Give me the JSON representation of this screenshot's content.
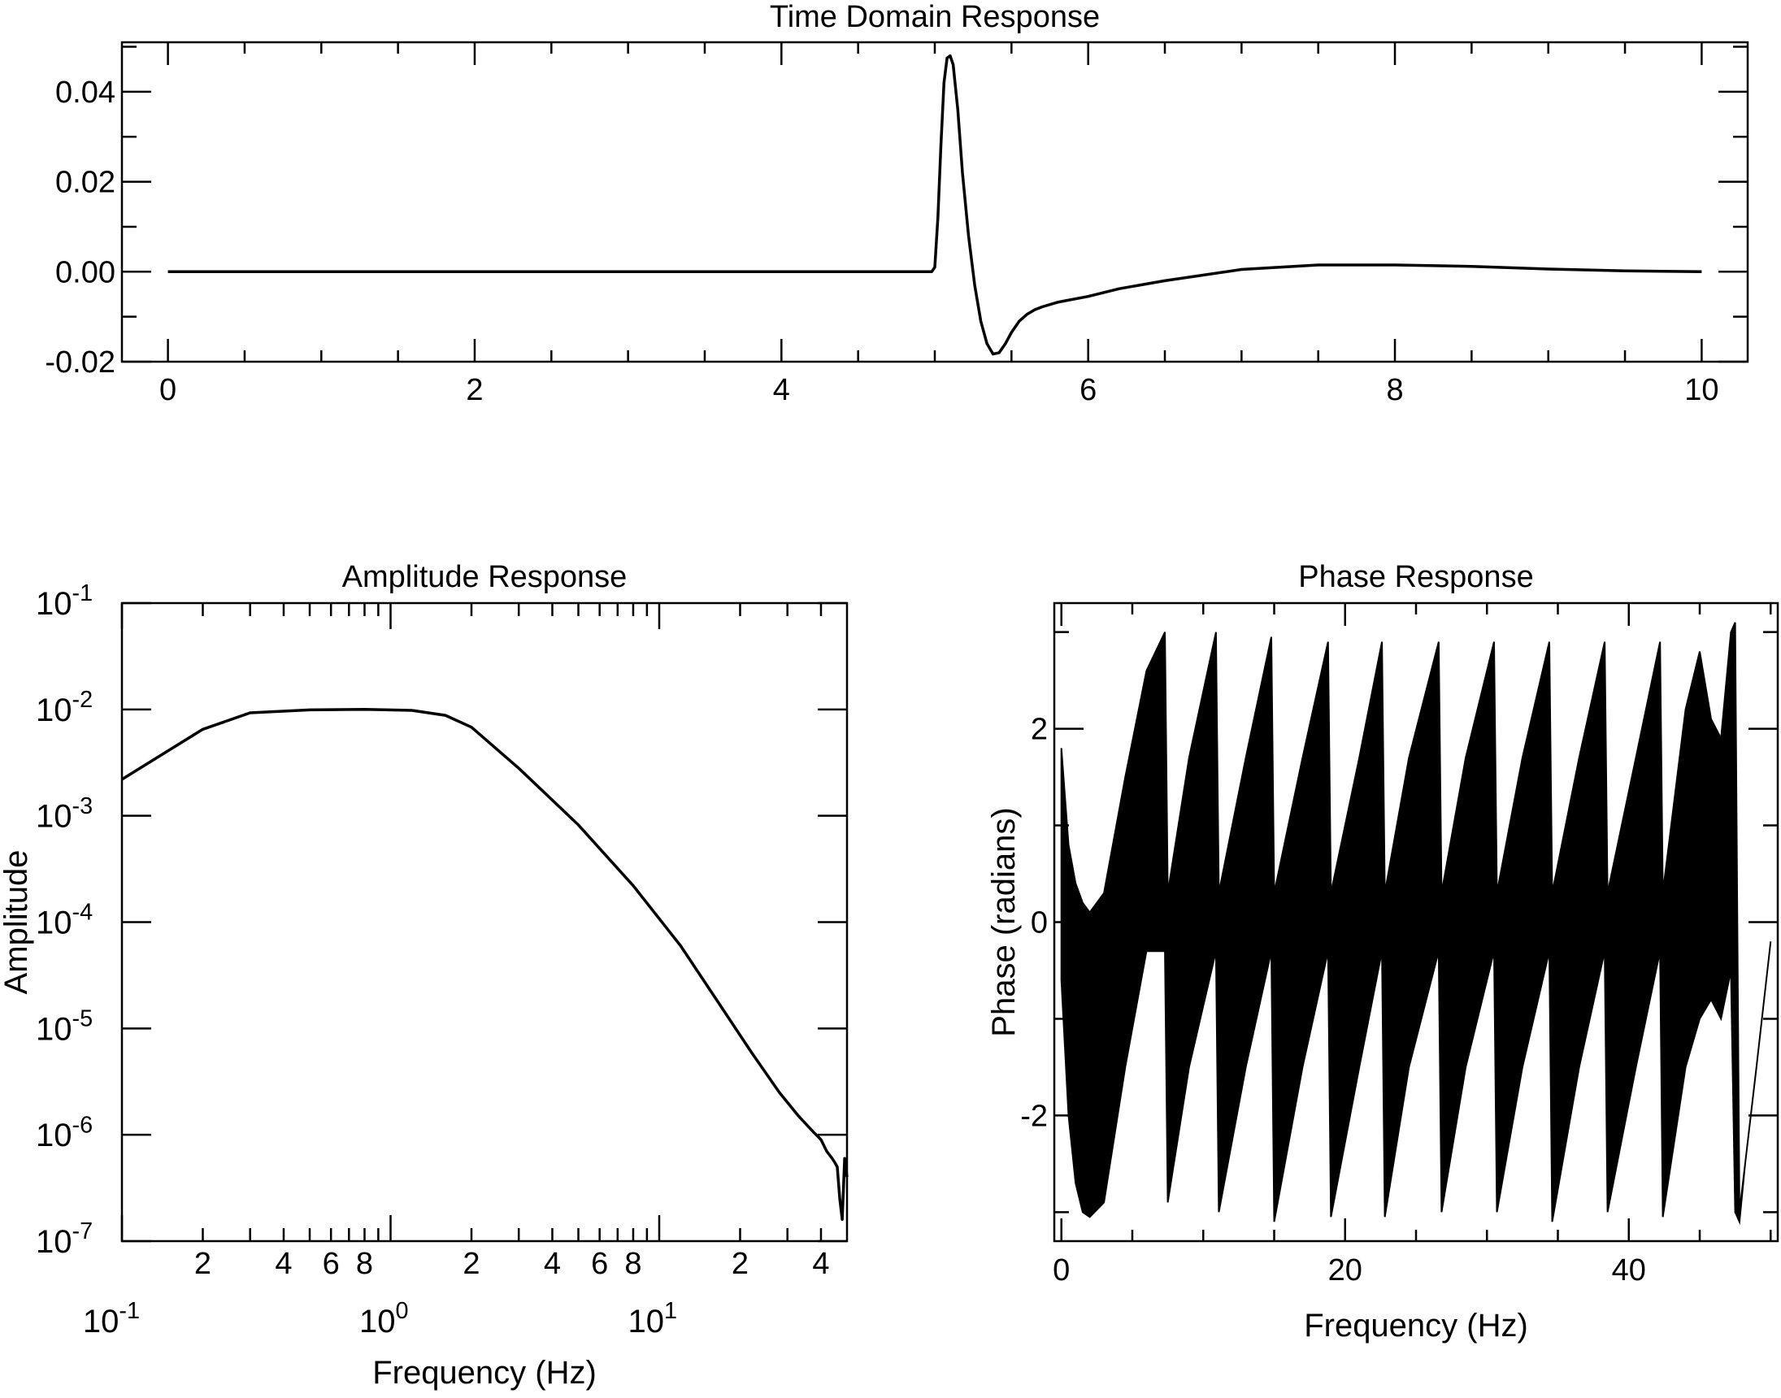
{
  "chart_data": [
    {
      "type": "line",
      "title": "Time Domain Response",
      "xlabel": "",
      "ylabel": "",
      "xlim": [
        -0.3,
        10.3
      ],
      "ylim": [
        -0.02,
        0.051
      ],
      "xticks": [
        0,
        2,
        4,
        6,
        8,
        10
      ],
      "xtick_labels": [
        "0",
        "2",
        "4",
        "6",
        "8",
        "10"
      ],
      "yticks": [
        -0.02,
        0.0,
        0.02,
        0.04
      ],
      "ytick_labels": [
        "-0.02",
        "0.00",
        "0.02",
        "0.04"
      ],
      "grid": false,
      "series": [
        {
          "color": "#000000",
          "x": [
            0,
            4.98,
            5.0,
            5.02,
            5.04,
            5.06,
            5.08,
            5.1,
            5.12,
            5.15,
            5.18,
            5.22,
            5.26,
            5.3,
            5.34,
            5.38,
            5.42,
            5.46,
            5.5,
            5.55,
            5.6,
            5.65,
            5.7,
            5.8,
            6.0,
            6.2,
            6.5,
            7.0,
            7.5,
            8.0,
            8.5,
            9.0,
            9.5,
            10.0
          ],
          "y": [
            0.0,
            0.0,
            0.001,
            0.012,
            0.028,
            0.042,
            0.0475,
            0.048,
            0.046,
            0.036,
            0.022,
            0.008,
            -0.003,
            -0.011,
            -0.016,
            -0.0183,
            -0.018,
            -0.016,
            -0.0135,
            -0.011,
            -0.0095,
            -0.0085,
            -0.0078,
            -0.0068,
            -0.0055,
            -0.0038,
            -0.002,
            0.0005,
            0.0015,
            0.0015,
            0.0012,
            0.0006,
            0.0002,
            0.0
          ]
        }
      ]
    },
    {
      "type": "line",
      "title": "Amplitude Response",
      "xlabel": "Frequency (Hz)",
      "ylabel": "Amplitude",
      "x_scale": "log",
      "y_scale": "log",
      "xlim": [
        0.1,
        50
      ],
      "ylim": [
        1e-07,
        0.1
      ],
      "xtick_labels_major": [
        {
          "base": "10",
          "exp": "-1"
        },
        {
          "base": "10",
          "exp": "0"
        },
        {
          "base": "10",
          "exp": "1"
        }
      ],
      "xticks_major": [
        0.1,
        1,
        10
      ],
      "xticks_minor_labeled": [
        0.2,
        0.4,
        0.6,
        0.8,
        2,
        4,
        6,
        8,
        20,
        40
      ],
      "xtick_labels_minor": [
        "2",
        "4",
        "6",
        "8",
        "2",
        "4",
        "6",
        "8",
        "2",
        "4"
      ],
      "yticks": [
        1e-07,
        1e-06,
        1e-05,
        0.0001,
        0.001,
        0.01,
        0.1
      ],
      "ytick_labels": [
        {
          "base": "10",
          "exp": "-7"
        },
        {
          "base": "10",
          "exp": "-6"
        },
        {
          "base": "10",
          "exp": "-5"
        },
        {
          "base": "10",
          "exp": "-4"
        },
        {
          "base": "10",
          "exp": "-3"
        },
        {
          "base": "10",
          "exp": "-2"
        },
        {
          "base": "10",
          "exp": "-1"
        }
      ],
      "grid": false,
      "series": [
        {
          "color": "#000000",
          "x": [
            0.1,
            0.2,
            0.3,
            0.5,
            0.8,
            1.2,
            1.6,
            2.0,
            3.0,
            5.0,
            8.0,
            12.0,
            17.0,
            22.0,
            28.0,
            33.0,
            37.0,
            40.0,
            42.0,
            44.0,
            45.0,
            46.0,
            47.0,
            48.0,
            49.0,
            50.0
          ],
          "y": [
            0.0022,
            0.0065,
            0.0093,
            0.0099,
            0.01,
            0.0098,
            0.0088,
            0.0068,
            0.0028,
            0.00082,
            0.00022,
            6e-05,
            1.6e-05,
            6e-06,
            2.5e-06,
            1.5e-06,
            1.1e-06,
            9e-07,
            7e-07,
            6e-07,
            5.5e-07,
            5e-07,
            2.5e-07,
            1.6e-07,
            6e-07,
            4e-07
          ]
        }
      ]
    },
    {
      "type": "line",
      "title": "Phase Response",
      "xlabel": "Frequency (Hz)",
      "ylabel": "Phase (radians)",
      "xlim": [
        -0.5,
        50.5
      ],
      "ylim": [
        -3.3,
        3.3
      ],
      "xticks": [
        0,
        20,
        40
      ],
      "xtick_labels": [
        "0",
        "20",
        "40"
      ],
      "yticks": [
        -2,
        0,
        2
      ],
      "ytick_labels": [
        "-2",
        "0",
        "2"
      ],
      "grid": false,
      "envelope": {
        "x": [
          0.0,
          0.5,
          1.0,
          1.5,
          2.0,
          3.0,
          4.5,
          6.0,
          7.3,
          7.5,
          9.0,
          10.9,
          11.1,
          13.0,
          14.8,
          15.0,
          17.0,
          18.8,
          19.0,
          21.0,
          22.6,
          22.8,
          24.5,
          26.6,
          26.8,
          28.5,
          30.5,
          30.7,
          32.5,
          34.4,
          34.6,
          36.5,
          38.3,
          38.5,
          40.5,
          42.2,
          42.4,
          44.0,
          45.0,
          45.8,
          46.5,
          47.2,
          47.5,
          47.8,
          48.2,
          49.0,
          50.0
        ],
        "upper": [
          1.8,
          0.8,
          0.4,
          0.2,
          0.1,
          0.3,
          1.5,
          2.6,
          3.0,
          0.3,
          1.7,
          3.0,
          0.3,
          1.7,
          2.95,
          0.3,
          1.7,
          2.9,
          0.3,
          1.7,
          2.9,
          0.3,
          1.7,
          2.9,
          0.3,
          1.7,
          2.9,
          0.3,
          1.7,
          2.9,
          0.3,
          1.7,
          2.9,
          0.3,
          1.7,
          2.9,
          0.3,
          2.2,
          2.8,
          2.1,
          1.9,
          3.0,
          3.1,
          -3.0,
          -2.5,
          -1.5,
          -0.2
        ],
        "lower": [
          -0.6,
          -2.0,
          -2.7,
          -3.0,
          -3.05,
          -2.9,
          -1.5,
          -0.3,
          -0.3,
          -2.9,
          -1.5,
          -0.3,
          -3.0,
          -1.5,
          -0.3,
          -3.1,
          -1.5,
          -0.3,
          -3.05,
          -1.5,
          -0.3,
          -3.05,
          -1.5,
          -0.3,
          -3.0,
          -1.5,
          -0.3,
          -3.0,
          -1.5,
          -0.3,
          -3.1,
          -1.5,
          -0.3,
          -3.0,
          -1.5,
          -0.3,
          -3.05,
          -1.5,
          -1.0,
          -0.8,
          -1.0,
          -0.5,
          -3.0,
          -3.1,
          -2.5,
          -1.5,
          -0.2
        ]
      }
    }
  ]
}
